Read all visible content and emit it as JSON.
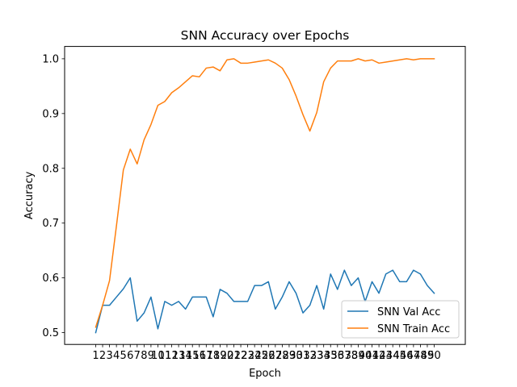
{
  "chart_data": {
    "type": "line",
    "title": "SNN Accuracy over Epochs",
    "xlabel": "Epoch",
    "ylabel": "Accuracy",
    "x": [
      1,
      2,
      3,
      4,
      5,
      6,
      7,
      8,
      9,
      10,
      11,
      12,
      13,
      14,
      15,
      16,
      17,
      18,
      19,
      20,
      21,
      22,
      23,
      24,
      25,
      26,
      27,
      28,
      29,
      30,
      31,
      32,
      33,
      34,
      35,
      36,
      37,
      38,
      39,
      40,
      41,
      42,
      43,
      44,
      45,
      46,
      47,
      48,
      49,
      50
    ],
    "xlim": [
      -3.5,
      54.5
    ],
    "ylim": [
      0.4785,
      1.0225
    ],
    "yticks": [
      0.5,
      0.6,
      0.7,
      0.8,
      0.9,
      1.0
    ],
    "ytick_labels": [
      "0.5",
      "0.6",
      "0.7",
      "0.8",
      "0.9",
      "1.0"
    ],
    "grid": false,
    "legend_position": "lower-right",
    "series": [
      {
        "name": "SNN Val Acc",
        "color": "#1f77b4",
        "values": [
          0.5,
          0.55,
          0.55,
          0.565,
          0.58,
          0.6,
          0.521,
          0.536,
          0.565,
          0.507,
          0.557,
          0.55,
          0.557,
          0.543,
          0.565,
          0.565,
          0.565,
          0.529,
          0.579,
          0.572,
          0.557,
          0.557,
          0.557,
          0.586,
          0.586,
          0.593,
          0.543,
          0.565,
          0.593,
          0.572,
          0.536,
          0.55,
          0.586,
          0.543,
          0.607,
          0.579,
          0.614,
          0.586,
          0.6,
          0.557,
          0.593,
          0.572,
          0.607,
          0.614,
          0.593,
          0.593,
          0.614,
          0.607,
          0.586,
          0.572
        ]
      },
      {
        "name": "SNN Train Acc",
        "color": "#ff7f0e",
        "values": [
          0.51,
          0.55,
          0.595,
          0.695,
          0.797,
          0.835,
          0.808,
          0.852,
          0.88,
          0.915,
          0.922,
          0.938,
          0.947,
          0.958,
          0.969,
          0.967,
          0.983,
          0.985,
          0.978,
          0.998,
          1.0,
          0.992,
          0.992,
          0.994,
          0.996,
          0.998,
          0.992,
          0.983,
          0.962,
          0.932,
          0.898,
          0.868,
          0.902,
          0.958,
          0.983,
          0.996,
          0.996,
          0.996,
          1.0,
          0.996,
          0.998,
          0.992,
          0.994,
          0.996,
          0.998,
          1.0,
          0.998,
          1.0,
          1.0,
          1.0
        ]
      }
    ]
  }
}
